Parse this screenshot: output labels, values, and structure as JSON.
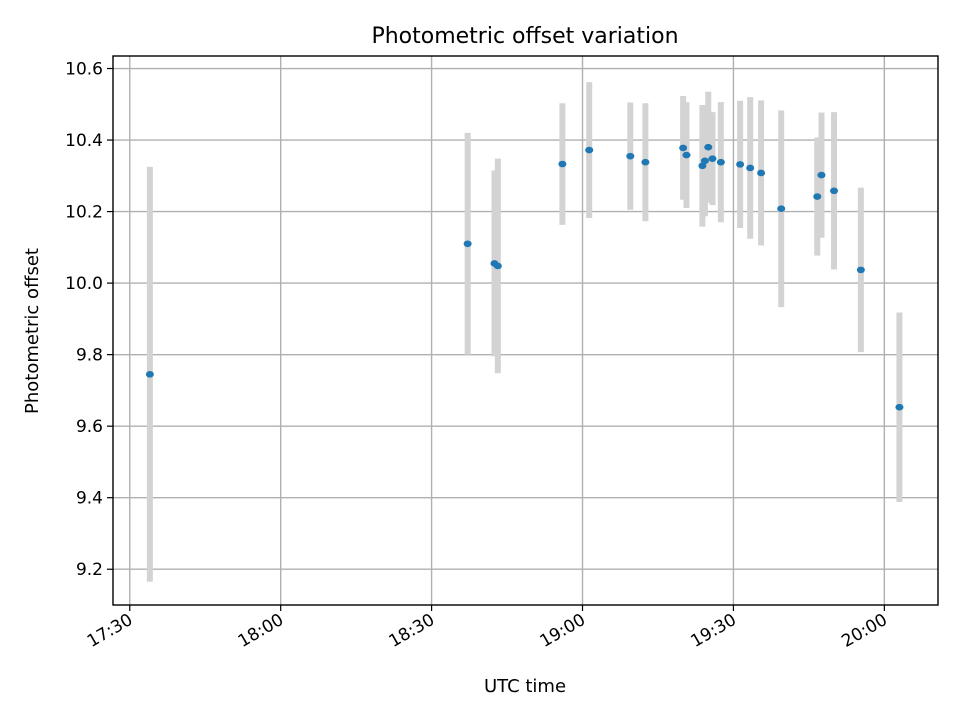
{
  "chart_data": {
    "type": "scatter",
    "title": "Photometric offset variation",
    "xlabel": "UTC time",
    "ylabel": "Photometric offset",
    "x_ticks": [
      "17:30",
      "18:00",
      "18:30",
      "19:00",
      "19:30",
      "20:00"
    ],
    "y_ticks": [
      "9.2",
      "9.4",
      "9.6",
      "9.8",
      "10.0",
      "10.2",
      "10.4",
      "10.6"
    ],
    "xlim": [
      "17:26:40",
      "20:10:40"
    ],
    "ylim": [
      9.1,
      10.635
    ],
    "grid": true,
    "marker_color": "#1f77b4",
    "errorbar_color": "#d3d3d3",
    "points": [
      {
        "x": "17:34:00",
        "y": 9.745,
        "err": 0.58
      },
      {
        "x": "18:37:10",
        "y": 10.11,
        "err": 0.31
      },
      {
        "x": "18:42:30",
        "y": 10.055,
        "err": 0.26
      },
      {
        "x": "18:43:10",
        "y": 10.048,
        "err": 0.3
      },
      {
        "x": "18:56:00",
        "y": 10.333,
        "err": 0.17
      },
      {
        "x": "19:01:20",
        "y": 10.372,
        "err": 0.19
      },
      {
        "x": "19:09:30",
        "y": 10.355,
        "err": 0.15
      },
      {
        "x": "19:12:30",
        "y": 10.338,
        "err": 0.165
      },
      {
        "x": "19:20:00",
        "y": 10.378,
        "err": 0.145
      },
      {
        "x": "19:20:40",
        "y": 10.358,
        "err": 0.148
      },
      {
        "x": "19:23:50",
        "y": 10.328,
        "err": 0.17
      },
      {
        "x": "19:24:20",
        "y": 10.342,
        "err": 0.155
      },
      {
        "x": "19:25:00",
        "y": 10.38,
        "err": 0.155
      },
      {
        "x": "19:25:50",
        "y": 10.348,
        "err": 0.13
      },
      {
        "x": "19:27:30",
        "y": 10.338,
        "err": 0.168
      },
      {
        "x": "19:31:20",
        "y": 10.332,
        "err": 0.178
      },
      {
        "x": "19:33:20",
        "y": 10.322,
        "err": 0.198
      },
      {
        "x": "19:35:30",
        "y": 10.308,
        "err": 0.203
      },
      {
        "x": "19:39:30",
        "y": 10.208,
        "err": 0.275
      },
      {
        "x": "19:46:40",
        "y": 10.242,
        "err": 0.165
      },
      {
        "x": "19:47:30",
        "y": 10.302,
        "err": 0.175
      },
      {
        "x": "19:50:00",
        "y": 10.258,
        "err": 0.22
      },
      {
        "x": "19:55:20",
        "y": 10.037,
        "err": 0.23
      },
      {
        "x": "20:03:00",
        "y": 9.653,
        "err": 0.265
      }
    ]
  }
}
